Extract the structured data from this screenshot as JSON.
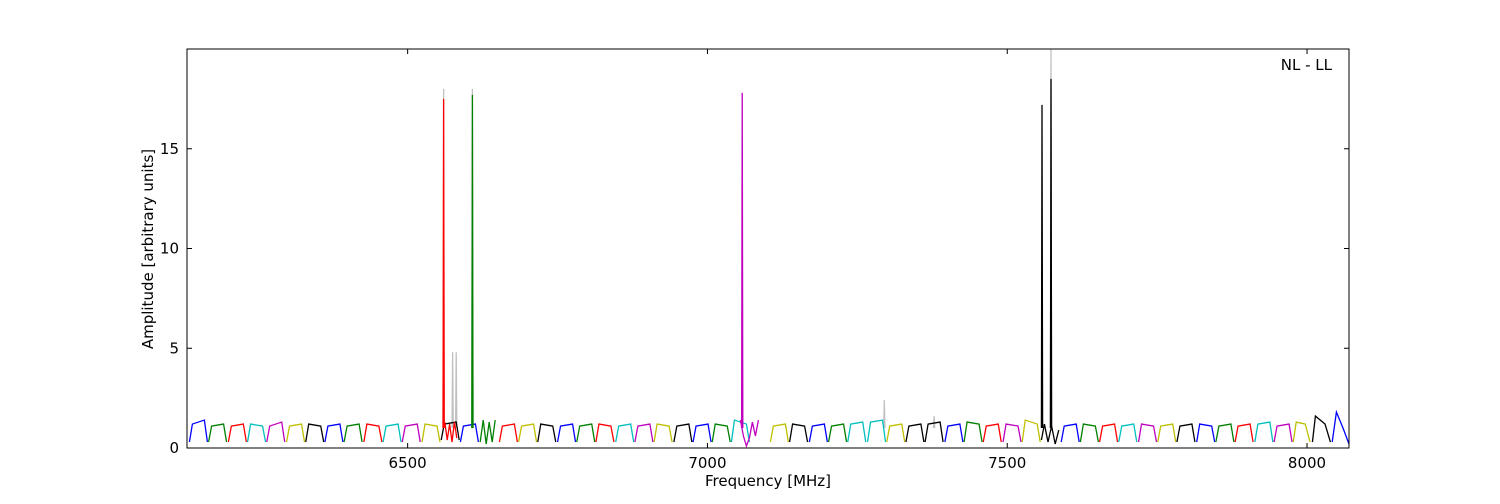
{
  "chart_data": {
    "type": "line",
    "annotation": "NL - LL",
    "x_label": "Frequency [MHz]",
    "y_label": "Amplitude [arbitrary units]",
    "xlim": [
      6132,
      8070
    ],
    "ylim": [
      0,
      20
    ],
    "xticks": [
      6500,
      7000,
      7500,
      8000
    ],
    "yticks": [
      0,
      5,
      10,
      15
    ],
    "series": [
      {
        "color": "#c0c0c0",
        "x": [
          6559,
          6560,
          6561
        ],
        "values": [
          1,
          18,
          1
        ]
      },
      {
        "color": "#c0c0c0",
        "x": [
          6574,
          6575,
          6576
        ],
        "values": [
          1,
          4.8,
          1
        ]
      },
      {
        "color": "#c0c0c0",
        "x": [
          6580,
          6581,
          6582
        ],
        "values": [
          1,
          4.8,
          1
        ]
      },
      {
        "color": "#c0c0c0",
        "x": [
          6607,
          6608,
          6609
        ],
        "values": [
          1,
          18,
          1
        ]
      },
      {
        "color": "#c0c0c0",
        "x": [
          7294,
          7295,
          7296
        ],
        "values": [
          1,
          2.4,
          1
        ]
      },
      {
        "color": "#c0c0c0",
        "x": [
          7377,
          7378,
          7379
        ],
        "values": [
          1,
          1.6,
          1
        ]
      },
      {
        "color": "#c0c0c0",
        "x": [
          7572,
          7573,
          7574
        ],
        "values": [
          1,
          20,
          1
        ]
      },
      {
        "color": "#0000ff",
        "x": [
          6136,
          6141,
          6161,
          6166
        ],
        "values": [
          0.3,
          1.2,
          1.4,
          0.3
        ]
      },
      {
        "color": "#008000",
        "x": [
          6168,
          6173,
          6193,
          6198
        ],
        "values": [
          0.3,
          1.1,
          1.2,
          0.3
        ]
      },
      {
        "color": "#ff0000",
        "x": [
          6201,
          6206,
          6226,
          6231
        ],
        "values": [
          0.3,
          1.1,
          1.2,
          0.3
        ]
      },
      {
        "color": "#00bfbf",
        "x": [
          6233,
          6238,
          6258,
          6263
        ],
        "values": [
          0.3,
          1.2,
          1.1,
          0.3
        ]
      },
      {
        "color": "#bf00bf",
        "x": [
          6265,
          6270,
          6290,
          6295
        ],
        "values": [
          0.3,
          1.1,
          1.3,
          0.3
        ]
      },
      {
        "color": "#bfbf00",
        "x": [
          6298,
          6303,
          6323,
          6328
        ],
        "values": [
          0.3,
          1.1,
          1.2,
          0.3
        ]
      },
      {
        "color": "#000000",
        "x": [
          6330,
          6335,
          6355,
          6360
        ],
        "values": [
          0.3,
          1.2,
          1.1,
          0.3
        ]
      },
      {
        "color": "#0000ff",
        "x": [
          6362,
          6367,
          6387,
          6392
        ],
        "values": [
          0.3,
          1.1,
          1.2,
          0.3
        ]
      },
      {
        "color": "#008000",
        "x": [
          6394,
          6399,
          6419,
          6424
        ],
        "values": [
          0.3,
          1.1,
          1.2,
          0.3
        ]
      },
      {
        "color": "#ff0000",
        "x": [
          6427,
          6432,
          6452,
          6457
        ],
        "values": [
          0.3,
          1.2,
          1.1,
          0.3
        ]
      },
      {
        "color": "#00bfbf",
        "x": [
          6459,
          6464,
          6484,
          6489
        ],
        "values": [
          0.3,
          1.1,
          1.2,
          0.3
        ]
      },
      {
        "color": "#bf00bf",
        "x": [
          6491,
          6496,
          6516,
          6521
        ],
        "values": [
          0.3,
          1.1,
          1.2,
          0.3
        ]
      },
      {
        "color": "#bfbf00",
        "x": [
          6524,
          6529,
          6549,
          6554
        ],
        "values": [
          0.3,
          1.2,
          1.1,
          0.3
        ]
      },
      {
        "color": "#000000",
        "x": [
          6556,
          6561,
          6581,
          6586
        ],
        "values": [
          0.4,
          1.2,
          1.3,
          0.4
        ]
      },
      {
        "color": "#ff0000",
        "x": [
          6562,
          6566,
          6570,
          6574,
          6578,
          6582
        ],
        "values": [
          1.3,
          0.4,
          1.2,
          0.3,
          1.3,
          0.5
        ]
      },
      {
        "color": "#0000ff",
        "x": [
          6588,
          6593,
          6613,
          6618
        ],
        "values": [
          0.3,
          1.1,
          1.2,
          0.3
        ]
      },
      {
        "color": "#008000",
        "x": [
          6621,
          6626,
          6631,
          6636,
          6641,
          6646
        ],
        "values": [
          0.3,
          1.4,
          0.2,
          1.3,
          0.3,
          1.4
        ]
      },
      {
        "color": "#ff0000",
        "x": [
          6653,
          6658,
          6678,
          6683
        ],
        "values": [
          0.3,
          1.1,
          1.2,
          0.3
        ]
      },
      {
        "color": "#bfbf00",
        "x": [
          6685,
          6690,
          6710,
          6715
        ],
        "values": [
          0.3,
          1.1,
          1.2,
          0.3
        ]
      },
      {
        "color": "#000000",
        "x": [
          6717,
          6722,
          6742,
          6747
        ],
        "values": [
          0.3,
          1.2,
          1.1,
          0.3
        ]
      },
      {
        "color": "#0000ff",
        "x": [
          6750,
          6755,
          6775,
          6780
        ],
        "values": [
          0.3,
          1.1,
          1.2,
          0.3
        ]
      },
      {
        "color": "#008000",
        "x": [
          6782,
          6787,
          6807,
          6812
        ],
        "values": [
          0.3,
          1.1,
          1.2,
          0.3
        ]
      },
      {
        "color": "#ff0000",
        "x": [
          6814,
          6819,
          6839,
          6844
        ],
        "values": [
          0.3,
          1.2,
          1.1,
          0.3
        ]
      },
      {
        "color": "#00bfbf",
        "x": [
          6847,
          6852,
          6872,
          6877
        ],
        "values": [
          0.3,
          1.1,
          1.2,
          0.3
        ]
      },
      {
        "color": "#bf00bf",
        "x": [
          6879,
          6884,
          6904,
          6909
        ],
        "values": [
          0.3,
          1.1,
          1.2,
          0.3
        ]
      },
      {
        "color": "#bfbf00",
        "x": [
          6911,
          6916,
          6936,
          6941
        ],
        "values": [
          0.3,
          1.2,
          1.1,
          0.3
        ]
      },
      {
        "color": "#000000",
        "x": [
          6944,
          6949,
          6969,
          6974
        ],
        "values": [
          0.3,
          1.1,
          1.2,
          0.3
        ]
      },
      {
        "color": "#0000ff",
        "x": [
          6976,
          6981,
          7001,
          7006
        ],
        "values": [
          0.3,
          1.1,
          1.2,
          0.3
        ]
      },
      {
        "color": "#008000",
        "x": [
          7008,
          7013,
          7033,
          7038
        ],
        "values": [
          0.3,
          1.2,
          1.1,
          0.3
        ]
      },
      {
        "color": "#00bfbf",
        "x": [
          7040,
          7045,
          7065,
          7070
        ],
        "values": [
          0.3,
          1.4,
          1.2,
          0.3
        ]
      },
      {
        "color": "#bf00bf",
        "x": [
          7055,
          7060,
          7065,
          7070,
          7075,
          7080,
          7085
        ],
        "values": [
          1.4,
          0.6,
          0.1,
          0.5,
          1.3,
          0.6,
          1.4
        ]
      },
      {
        "color": "#bfbf00",
        "x": [
          7105,
          7110,
          7130,
          7135
        ],
        "values": [
          0.3,
          1.1,
          1.2,
          0.3
        ]
      },
      {
        "color": "#000000",
        "x": [
          7137,
          7142,
          7162,
          7167
        ],
        "values": [
          0.3,
          1.2,
          1.1,
          0.3
        ]
      },
      {
        "color": "#0000ff",
        "x": [
          7170,
          7175,
          7195,
          7200
        ],
        "values": [
          0.3,
          1.1,
          1.2,
          0.3
        ]
      },
      {
        "color": "#008000",
        "x": [
          7202,
          7207,
          7227,
          7232
        ],
        "values": [
          0.3,
          1.1,
          1.2,
          0.3
        ]
      },
      {
        "color": "#00bfbf",
        "x": [
          7234,
          7239,
          7259,
          7264
        ],
        "values": [
          0.3,
          1.2,
          1.3,
          0.3
        ]
      },
      {
        "color": "#00bfbf",
        "x": [
          7267,
          7272,
          7292,
          7297
        ],
        "values": [
          0.3,
          1.3,
          1.4,
          0.3
        ]
      },
      {
        "color": "#bfbf00",
        "x": [
          7299,
          7304,
          7324,
          7329
        ],
        "values": [
          0.3,
          1.1,
          1.2,
          0.3
        ]
      },
      {
        "color": "#000000",
        "x": [
          7331,
          7336,
          7356,
          7361
        ],
        "values": [
          0.3,
          1.1,
          1.2,
          0.3
        ]
      },
      {
        "color": "#000000",
        "x": [
          7363,
          7368,
          7388,
          7393
        ],
        "values": [
          0.3,
          1.2,
          1.3,
          0.3
        ]
      },
      {
        "color": "#0000ff",
        "x": [
          7396,
          7401,
          7421,
          7426
        ],
        "values": [
          0.3,
          1.1,
          1.2,
          0.3
        ]
      },
      {
        "color": "#008000",
        "x": [
          7428,
          7433,
          7453,
          7458
        ],
        "values": [
          0.3,
          1.3,
          1.2,
          0.3
        ]
      },
      {
        "color": "#ff0000",
        "x": [
          7460,
          7465,
          7485,
          7490
        ],
        "values": [
          0.3,
          1.1,
          1.2,
          0.3
        ]
      },
      {
        "color": "#bf00bf",
        "x": [
          7493,
          7498,
          7518,
          7523
        ],
        "values": [
          0.3,
          1.2,
          1.1,
          0.3
        ]
      },
      {
        "color": "#bfbf00",
        "x": [
          7525,
          7530,
          7550,
          7555
        ],
        "values": [
          0.3,
          1.4,
          1.2,
          0.3
        ]
      },
      {
        "color": "#000000",
        "x": [
          7557,
          7562,
          7568,
          7574,
          7580,
          7586
        ],
        "values": [
          0.4,
          1.2,
          0.3,
          1.1,
          0.2,
          0.9
        ]
      },
      {
        "color": "#0000ff",
        "x": [
          7590,
          7595,
          7615,
          7620
        ],
        "values": [
          0.3,
          1.1,
          1.2,
          0.3
        ]
      },
      {
        "color": "#008000",
        "x": [
          7622,
          7627,
          7647,
          7652
        ],
        "values": [
          0.3,
          1.2,
          1.1,
          0.3
        ]
      },
      {
        "color": "#ff0000",
        "x": [
          7654,
          7659,
          7679,
          7684
        ],
        "values": [
          0.3,
          1.1,
          1.2,
          0.3
        ]
      },
      {
        "color": "#00bfbf",
        "x": [
          7686,
          7691,
          7711,
          7716
        ],
        "values": [
          0.3,
          1.1,
          1.2,
          0.3
        ]
      },
      {
        "color": "#bf00bf",
        "x": [
          7719,
          7724,
          7744,
          7749
        ],
        "values": [
          0.3,
          1.2,
          1.1,
          0.3
        ]
      },
      {
        "color": "#bfbf00",
        "x": [
          7751,
          7756,
          7776,
          7781
        ],
        "values": [
          0.3,
          1.1,
          1.2,
          0.3
        ]
      },
      {
        "color": "#000000",
        "x": [
          7783,
          7788,
          7808,
          7813
        ],
        "values": [
          0.3,
          1.1,
          1.2,
          0.3
        ]
      },
      {
        "color": "#0000ff",
        "x": [
          7816,
          7821,
          7841,
          7846
        ],
        "values": [
          0.3,
          1.2,
          1.1,
          0.3
        ]
      },
      {
        "color": "#008000",
        "x": [
          7848,
          7853,
          7873,
          7878
        ],
        "values": [
          0.3,
          1.1,
          1.2,
          0.3
        ]
      },
      {
        "color": "#ff0000",
        "x": [
          7880,
          7885,
          7905,
          7910
        ],
        "values": [
          0.3,
          1.1,
          1.2,
          0.3
        ]
      },
      {
        "color": "#00bfbf",
        "x": [
          7913,
          7918,
          7938,
          7943
        ],
        "values": [
          0.3,
          1.2,
          1.3,
          0.3
        ]
      },
      {
        "color": "#bf00bf",
        "x": [
          7945,
          7950,
          7970,
          7975
        ],
        "values": [
          0.3,
          1.1,
          1.2,
          0.3
        ]
      },
      {
        "color": "#bfbf00",
        "x": [
          7977,
          7982,
          7997,
          8005
        ],
        "values": [
          0.3,
          1.3,
          1.2,
          0.3
        ]
      },
      {
        "color": "#000000",
        "x": [
          8009,
          8014,
          8030,
          8039
        ],
        "values": [
          0.3,
          1.6,
          1.2,
          0.3
        ]
      },
      {
        "color": "#0000ff",
        "x": [
          8042,
          8049,
          8060,
          8070
        ],
        "values": [
          0.3,
          1.8,
          1.0,
          0.2
        ]
      },
      {
        "color": "#ff0000",
        "x": [
          6559,
          6560,
          6561
        ],
        "values": [
          1,
          17.5,
          1
        ]
      },
      {
        "color": "#008000",
        "x": [
          6607,
          6608,
          6609
        ],
        "values": [
          1,
          17.7,
          1
        ]
      },
      {
        "color": "#bf00bf",
        "x": [
          7057,
          7058,
          7059
        ],
        "values": [
          1,
          17.8,
          1
        ]
      },
      {
        "color": "#000000",
        "x": [
          7557,
          7558,
          7559
        ],
        "values": [
          1,
          17.2,
          1
        ]
      },
      {
        "color": "#000000",
        "x": [
          7572,
          7573,
          7574
        ],
        "values": [
          1,
          18.5,
          1
        ]
      }
    ]
  }
}
